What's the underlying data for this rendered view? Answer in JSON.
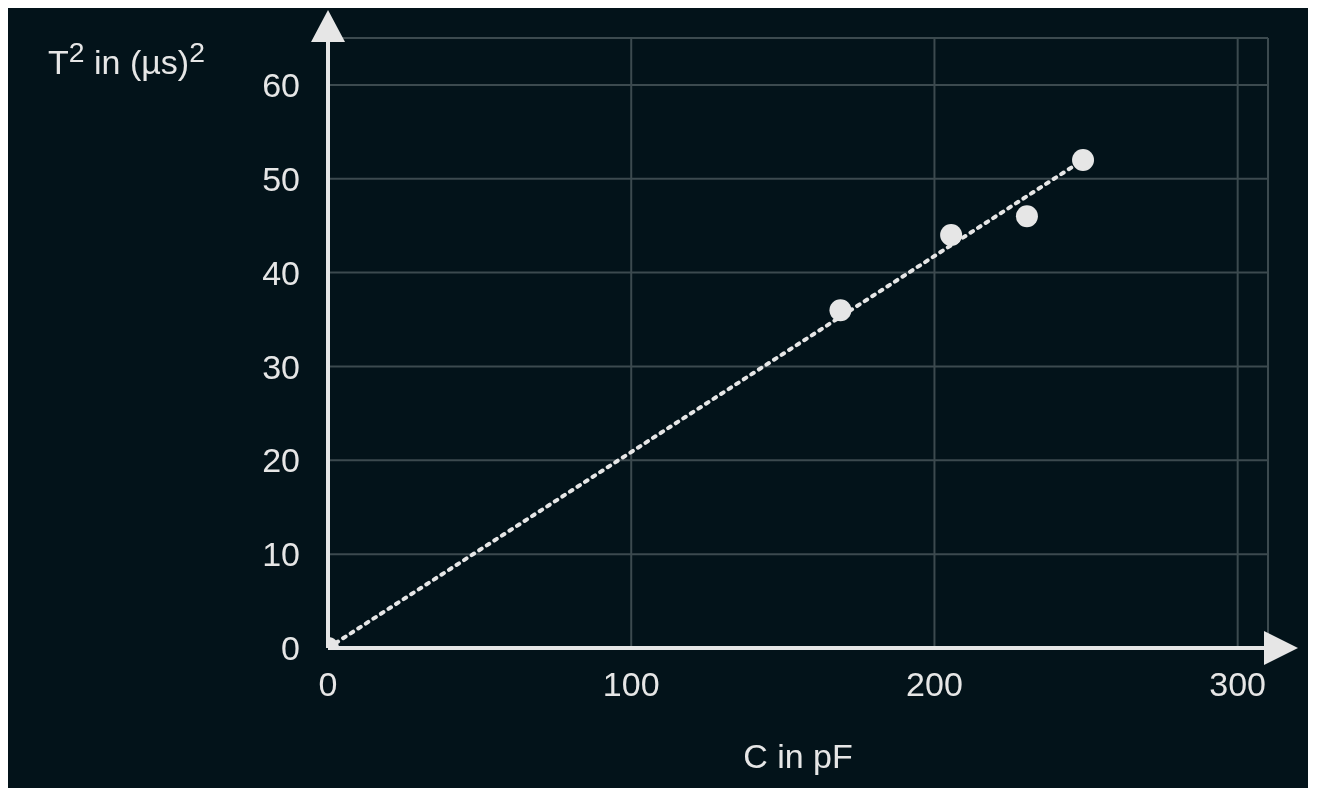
{
  "chart_data": {
    "type": "scatter",
    "xlabel": "C in pF",
    "ylabel": "T$^{2}$ in (µs)$^{2}$",
    "xlim": [
      0,
      310
    ],
    "ylim": [
      0,
      65
    ],
    "xticks": [
      0,
      100,
      200,
      300
    ],
    "yticks": [
      0,
      10,
      20,
      30,
      40,
      50,
      60
    ],
    "grid": true,
    "series": [
      {
        "type": "line",
        "color": "#e6e6e6",
        "x": [
          0,
          249
        ],
        "values": [
          0,
          52
        ],
        "marker": "none",
        "line_style": "dotted"
      },
      {
        "type": "scatter",
        "color": "#e6e6e6",
        "x": [
          0,
          169,
          205.5,
          230.5,
          249
        ],
        "values": [
          0,
          36,
          44,
          46,
          52
        ],
        "marker": "circle"
      }
    ]
  }
}
